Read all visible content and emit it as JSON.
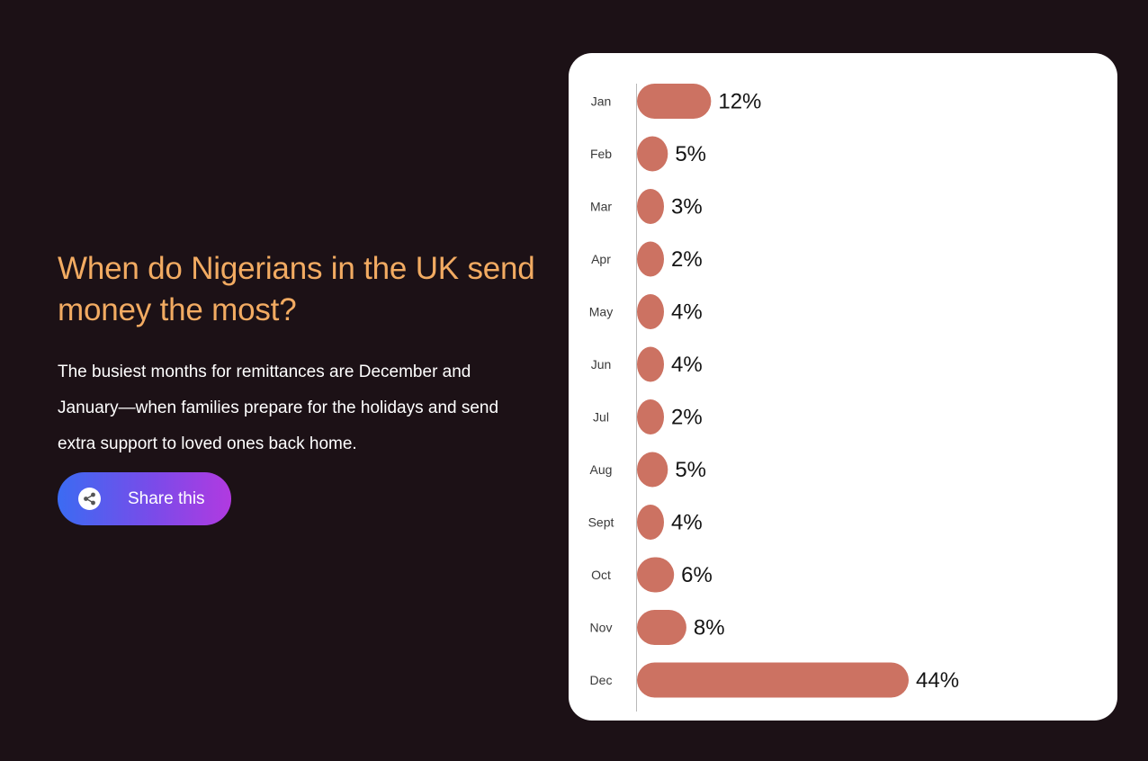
{
  "intro": {
    "heading": "When do Nigerians in the UK send money the most?",
    "description": "The busiest months for remittances are December and January—when families prepare for the holidays and send extra support to loved ones back home."
  },
  "share_button": {
    "label": "Share this",
    "icon": "share-icon"
  },
  "colors": {
    "page_background": "#1c1116",
    "heading": "#f2ab62",
    "bar": "#cc7262",
    "button_gradient": [
      "#3b6bf2",
      "#b13ae0"
    ]
  },
  "chart_data": {
    "type": "bar",
    "orientation": "horizontal",
    "title": "",
    "xlabel": "",
    "ylabel": "",
    "categories": [
      "Jan",
      "Feb",
      "Mar",
      "Apr",
      "May",
      "Jun",
      "Jul",
      "Aug",
      "Sept",
      "Oct",
      "Nov",
      "Dec"
    ],
    "values": [
      12,
      5,
      3,
      2,
      4,
      4,
      2,
      5,
      4,
      6,
      8,
      44
    ],
    "value_labels": [
      "12%",
      "5%",
      "3%",
      "2%",
      "4%",
      "4%",
      "2%",
      "5%",
      "4%",
      "6%",
      "8%",
      "44%"
    ],
    "xlim": [
      0,
      44
    ],
    "grid": false,
    "legend": "none"
  }
}
